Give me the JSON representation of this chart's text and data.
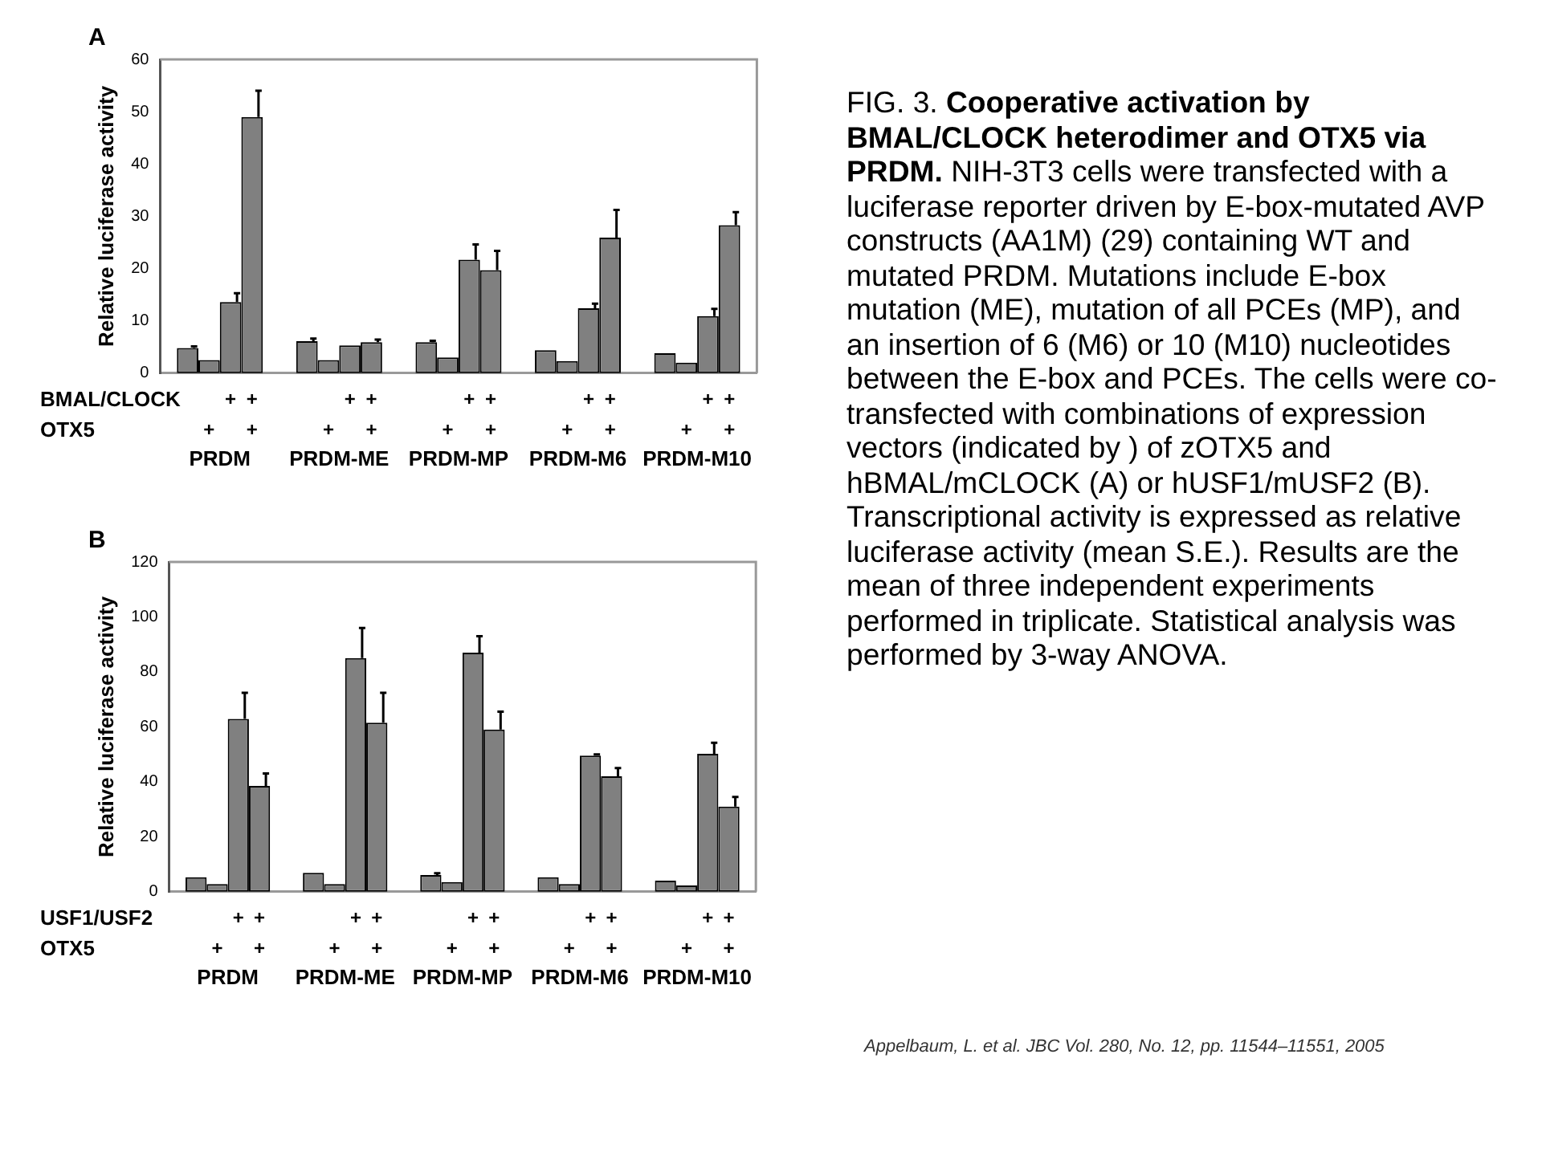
{
  "chart_data": [
    {
      "type": "bar",
      "title": "A",
      "ylabel": "Relative luciferase activity",
      "categories": [
        "PRDM",
        "PRDM-ME",
        "PRDM-MP",
        "PRDM-M6",
        "PRDM-M10"
      ],
      "series": [
        {
          "color": "#808080",
          "values": [
            4.8,
            6.1,
            5.9,
            4.4,
            3.8
          ],
          "errors": [
            [
              4.8,
              5.1
            ],
            [
              6.1,
              6.6
            ],
            [
              5.9,
              6.2
            ],
            null,
            null
          ]
        },
        {
          "color": "#808080",
          "values": [
            2.5,
            2.5,
            3.0,
            2.3,
            2.0
          ],
          "errors": [
            null,
            null,
            null,
            null,
            null
          ]
        },
        {
          "color": "#808080",
          "values": [
            13.6,
            5.3,
            21.7,
            12.4,
            10.9
          ],
          "errors": [
            [
              13.6,
              15.3
            ],
            null,
            [
              21.7,
              24.6
            ],
            [
              12.4,
              13.3
            ],
            [
              10.9,
              12.3
            ]
          ]
        },
        {
          "color": "#808080",
          "values": [
            49,
            5.9,
            19.7,
            25.9,
            28.3
          ],
          "errors": [
            [
              49,
              54
            ],
            [
              5.9,
              6.4
            ],
            [
              19.7,
              23.4
            ],
            [
              25.9,
              31.2
            ],
            [
              28.3,
              30.8
            ]
          ]
        }
      ],
      "ylim": [
        0,
        60
      ],
      "yticks": [
        0,
        10,
        20,
        30,
        40,
        50,
        60
      ],
      "grid": false,
      "annotations": [
        "BMAL/CLOCK",
        "OTX5",
        "+",
        "+",
        "+",
        "+",
        "+",
        "+",
        "+",
        "+",
        "+",
        "+",
        "+",
        "+",
        "+",
        "+",
        "+",
        "+",
        "+",
        "+",
        "+",
        "+"
      ]
    },
    {
      "type": "bar",
      "title": "B",
      "ylabel": "Relative luciferase activity",
      "categories": [
        "PRDM",
        "PRDM-ME",
        "PRDM-MP",
        "PRDM-M6",
        "PRDM-M10"
      ],
      "series": [
        {
          "color": "#808080",
          "values": [
            5.3,
            6.9,
            6.1,
            5.3,
            4.0
          ],
          "errors": [
            null,
            null,
            [
              6.1,
              6.7
            ],
            null,
            null
          ]
        },
        {
          "color": "#808080",
          "values": [
            2.8,
            2.8,
            3.5,
            2.8,
            2.3
          ],
          "errors": [
            null,
            null,
            null,
            null,
            null
          ]
        },
        {
          "color": "#808080",
          "values": [
            62.9,
            85,
            87,
            49.5,
            50.2
          ],
          "errors": [
            [
              62.9,
              72.4
            ],
            [
              85,
              96
            ],
            [
              87,
              93
            ],
            [
              49.5,
              50
            ],
            [
              50.2,
              54.2
            ]
          ]
        },
        {
          "color": "#808080",
          "values": [
            38.5,
            61.5,
            59,
            42,
            31
          ],
          "errors": [
            [
              38.5,
              43
            ],
            [
              61.5,
              72.4
            ],
            [
              59,
              65.5
            ],
            [
              42,
              45
            ],
            [
              31,
              34.5
            ]
          ]
        }
      ],
      "ylim": [
        0,
        120
      ],
      "yticks": [
        0,
        20,
        40,
        60,
        80,
        100,
        120
      ],
      "grid": false,
      "annotations": [
        "USF1/USF2",
        "OTX5",
        "+",
        "+",
        "+",
        "+",
        "+",
        "+",
        "+",
        "+",
        "+",
        "+",
        "+",
        "+",
        "+",
        "+",
        "+",
        "+",
        "+",
        "+",
        "+",
        "+"
      ]
    },
    {
      "type": "other",
      "annotations": [
        "FIG. 3.",
        "Cooperative activation by BMAL/CLOCK heterodimer and OTX5 via PRDM.",
        "NIH-3T3 cells were transfected with a luciferase reporter driven by E-box-mutated AVP constructs (AA1M) (29) containing WT and mutated PRDM. Mutations include E-box mutation (ME), mutation of all PCEs (MP), and an insertion of 6 (M6) or 10 (M10) nucleotides between the E-box and PCEs. The cells were co-transfected with combinations of expression vectors (indicated by ) of zOTX5 and hBMAL/mCLOCK (A) or hUSF1/mUSF2 (B). Transcriptional activity is expressed as relative luciferase activity (mean  S.E.). Results are the mean of three independent experiments performed in triplicate. Statistical analysis was performed by 3-way ANOVA.",
        "Appelbaum, L. et al. JBC Vol. 280, No. 12, pp. 11544–11551,  2005"
      ]
    }
  ]
}
